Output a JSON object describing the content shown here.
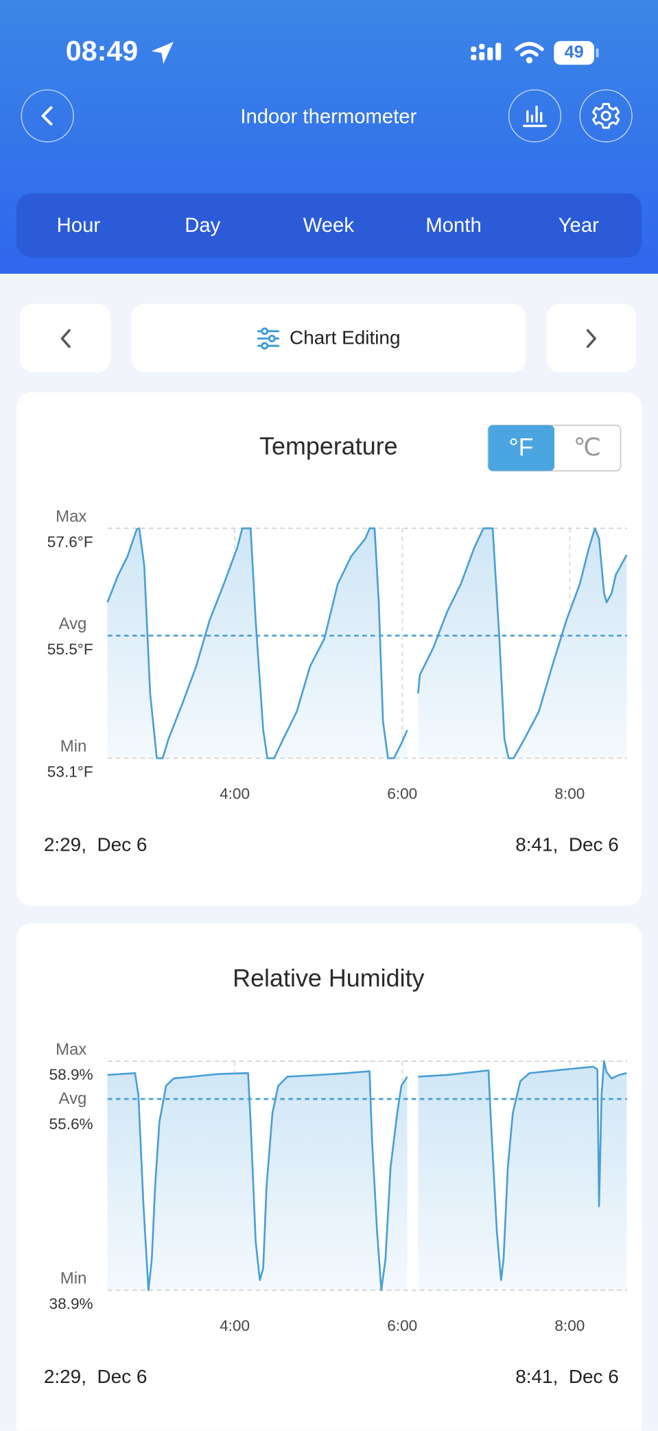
{
  "status_bar": {
    "time": "08:49",
    "battery": "49"
  },
  "header": {
    "title": "Indoor thermometer"
  },
  "tabs": [
    "Hour",
    "Day",
    "Week",
    "Month",
    "Year"
  ],
  "toolbar": {
    "label": "Chart Editing"
  },
  "chart_data": [
    {
      "type": "line",
      "title": "Temperature",
      "units": [
        "°F",
        "℃"
      ],
      "unit_selected": 0,
      "color": "#4a9fd4",
      "grid": true,
      "x": [
        2.48,
        2.61,
        2.72,
        2.83,
        2.86,
        2.92,
        2.99,
        3.07,
        3.14,
        3.21,
        3.38,
        3.54,
        3.7,
        3.87,
        4.03,
        4.09,
        4.19,
        4.25,
        4.34,
        4.39,
        4.47,
        4.58,
        4.74,
        4.9,
        5.07,
        5.23,
        5.39,
        5.56,
        5.61,
        5.67,
        5.72,
        5.77,
        5.83,
        5.9,
        5.99,
        6.06,
        6.12,
        6.19,
        6.21,
        6.37,
        6.54,
        6.7,
        6.86,
        6.97,
        7.08,
        7.16,
        7.22,
        7.27,
        7.33,
        7.46,
        7.63,
        7.79,
        7.96,
        8.12,
        8.23,
        8.3,
        8.35,
        8.41,
        8.44,
        8.5,
        8.55,
        8.68
      ],
      "values": [
        56.15,
        56.69,
        57.05,
        57.58,
        57.6,
        56.87,
        54.37,
        53.1,
        53.1,
        53.48,
        54.19,
        54.9,
        55.8,
        56.51,
        57.22,
        57.6,
        57.6,
        55.8,
        53.65,
        53.1,
        53.1,
        53.48,
        54.01,
        54.9,
        55.44,
        56.51,
        57.05,
        57.4,
        57.6,
        57.6,
        56.15,
        53.83,
        53.1,
        53.1,
        53.39,
        53.65,
        null,
        54.37,
        54.73,
        55.26,
        55.98,
        56.51,
        57.22,
        57.6,
        57.6,
        55.44,
        53.48,
        53.1,
        53.1,
        53.48,
        54.01,
        54.9,
        55.8,
        56.51,
        57.22,
        57.6,
        57.4,
        56.33,
        56.15,
        56.33,
        56.69,
        57.08
      ],
      "xlim": [
        2.4833,
        8.6833
      ],
      "xticks": [
        {
          "value": 4,
          "label": "4:00"
        },
        {
          "value": 6,
          "label": "6:00"
        },
        {
          "value": 8,
          "label": "8:00"
        }
      ],
      "ylim": [
        53.1,
        57.6
      ],
      "yticks": [
        {
          "value": 57.6,
          "label": "57.6°F"
        },
        {
          "value": 55.5,
          "label": "55.5°F"
        },
        {
          "value": 53.1,
          "label": "53.1°F"
        }
      ],
      "ytick_names": [
        "Max",
        "Avg",
        "Min"
      ],
      "highlight_tick": 1,
      "start_label": "2:29,  Dec 6",
      "end_label": "8:41,  Dec 6"
    },
    {
      "type": "line",
      "title": "Relative Humidity",
      "color": "#4a9fd4",
      "grid": true,
      "x": [
        2.48,
        2.81,
        2.85,
        2.91,
        2.97,
        3.01,
        3.05,
        3.1,
        3.18,
        3.27,
        3.49,
        3.81,
        4.16,
        4.19,
        4.25,
        4.3,
        4.34,
        4.38,
        4.45,
        4.52,
        4.63,
        5.01,
        5.34,
        5.61,
        5.64,
        5.7,
        5.75,
        5.8,
        5.86,
        5.94,
        5.99,
        6.06,
        6.12,
        6.19,
        6.54,
        7.03,
        7.06,
        7.13,
        7.18,
        7.21,
        7.26,
        7.32,
        7.41,
        7.52,
        7.95,
        8.28,
        8.33,
        8.35,
        8.38,
        8.41,
        8.44,
        8.5,
        8.59,
        8.68
      ],
      "values": [
        57.7,
        57.86,
        55.95,
        46.39,
        38.9,
        41.61,
        47.98,
        53.56,
        56.75,
        57.39,
        57.55,
        57.78,
        57.86,
        53.56,
        43.2,
        39.78,
        40.81,
        47.98,
        54.36,
        56.75,
        57.55,
        57.7,
        57.86,
        58.02,
        51.97,
        44.0,
        38.9,
        41.61,
        49.58,
        54.36,
        56.75,
        57.55,
        null,
        57.55,
        57.7,
        58.1,
        53.56,
        44.0,
        39.78,
        41.61,
        49.58,
        54.36,
        57.15,
        57.86,
        58.18,
        58.42,
        58.18,
        46.23,
        55.95,
        58.9,
        57.94,
        57.39,
        57.7,
        57.86
      ],
      "xlim": [
        2.4833,
        8.6833
      ],
      "xticks": [
        {
          "value": 4,
          "label": "4:00"
        },
        {
          "value": 6,
          "label": "6:00"
        },
        {
          "value": 8,
          "label": "8:00"
        }
      ],
      "ylim": [
        38.9,
        58.9
      ],
      "yticks": [
        {
          "value": 58.9,
          "label": "58.9%"
        },
        {
          "value": 55.6,
          "label": "55.6%"
        },
        {
          "value": 38.9,
          "label": "38.9%"
        }
      ],
      "ytick_names": [
        "Max",
        "Avg",
        "Min"
      ],
      "highlight_tick": 1,
      "start_label": "2:29,  Dec 6",
      "end_label": "8:41,  Dec 6"
    }
  ]
}
